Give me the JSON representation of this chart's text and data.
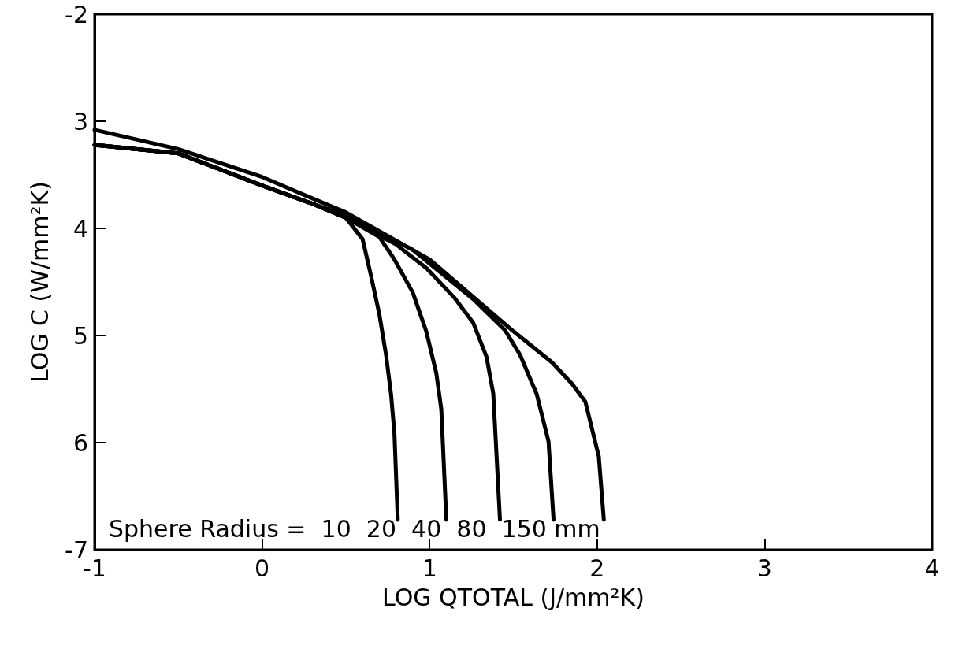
{
  "chart_data": {
    "type": "line",
    "xlabel": "LOG QTOTAL (J/mm²K)",
    "ylabel": "LOG C (W/mm²K)",
    "xlim": [
      -1,
      4
    ],
    "xticks": [
      -1,
      0,
      1,
      2,
      3,
      4
    ],
    "ylim": [
      -7,
      -2
    ],
    "yticks": [
      -2,
      {
        "value": -3,
        "label": "3"
      },
      {
        "value": -4,
        "label": "4"
      },
      {
        "value": -5,
        "label": "5"
      },
      {
        "value": -6,
        "label": "6"
      },
      -7
    ],
    "grid": false,
    "marker": "none",
    "line_style": "solid",
    "annotations": [
      "Sphere Radius =  10  20  40  80  150 mm"
    ],
    "series": [
      {
        "color": "#000000",
        "x": [
          -1,
          -0.5,
          0,
          0.3,
          0.5,
          0.6,
          0.65,
          0.7,
          0.74,
          0.77,
          0.79,
          0.81
        ],
        "values": [
          -3.22,
          -3.3,
          -3.6,
          -3.77,
          -3.9,
          -4.1,
          -4.44,
          -4.8,
          -5.18,
          -5.55,
          -5.91,
          -6.72
        ]
      },
      {
        "color": "#000000",
        "x": [
          -1,
          -0.5,
          0,
          0.3,
          0.5,
          0.7,
          0.79,
          0.9,
          0.98,
          1.04,
          1.07,
          1.1
        ],
        "values": [
          -3.22,
          -3.3,
          -3.6,
          -3.77,
          -3.9,
          -4.08,
          -4.29,
          -4.6,
          -4.96,
          -5.35,
          -5.69,
          -6.72
        ]
      },
      {
        "color": "#000000",
        "x": [
          -1,
          -0.5,
          0,
          0.3,
          0.5,
          0.8,
          0.98,
          1.15,
          1.26,
          1.34,
          1.38,
          1.42
        ],
        "values": [
          -3.22,
          -3.3,
          -3.6,
          -3.77,
          -3.9,
          -4.15,
          -4.37,
          -4.65,
          -4.88,
          -5.2,
          -5.54,
          -6.72
        ]
      },
      {
        "color": "#000000",
        "x": [
          -1,
          -0.5,
          0,
          0.3,
          0.5,
          0.9,
          1.26,
          1.45,
          1.54,
          1.64,
          1.71,
          1.74
        ],
        "values": [
          -3.22,
          -3.3,
          -3.6,
          -3.77,
          -3.88,
          -4.2,
          -4.66,
          -4.95,
          -5.18,
          -5.55,
          -5.99,
          -6.72
        ]
      },
      {
        "color": "#000000",
        "x": [
          -1,
          -0.5,
          0,
          0.3,
          0.5,
          1,
          1.5,
          1.73,
          1.85,
          1.93,
          2.01,
          2.04
        ],
        "values": [
          -3.08,
          -3.26,
          -3.52,
          -3.72,
          -3.85,
          -4.29,
          -4.96,
          -5.25,
          -5.45,
          -5.62,
          -6.13,
          -6.72
        ]
      }
    ]
  }
}
